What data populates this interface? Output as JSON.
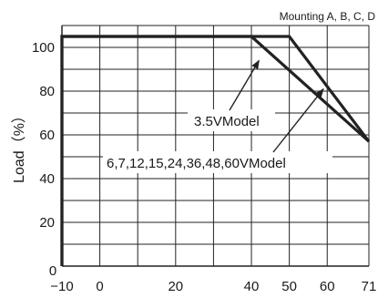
{
  "chart_data": {
    "type": "line",
    "subtitle": "Mounting A, B, C, D",
    "xlabel": "",
    "ylabel": "Load（%）",
    "xlim": [
      -10,
      71
    ],
    "ylim": [
      0,
      110
    ],
    "x_ticks": [
      -10,
      0,
      20,
      40,
      50,
      60,
      71
    ],
    "x_tick_labels": [
      "−10",
      "0",
      "20",
      "40",
      "50",
      "60",
      "71"
    ],
    "y_ticks": [
      0,
      20,
      40,
      60,
      80,
      100
    ],
    "y_tick_labels": [
      "0",
      "20",
      "40",
      "60",
      "80",
      "100"
    ],
    "x_grid": [
      -10,
      0,
      10,
      20,
      30,
      40,
      50,
      60,
      71
    ],
    "y_grid": [
      10,
      20,
      30,
      40,
      50,
      60,
      70,
      80,
      90,
      100,
      110
    ],
    "grid": true,
    "series": [
      {
        "name": "3.5VModel",
        "points": [
          [
            -10,
            0
          ],
          [
            -10,
            105
          ],
          [
            40,
            105
          ],
          [
            71,
            57
          ]
        ]
      },
      {
        "name": "6,7,12,15,24,36,48,60VModel",
        "points": [
          [
            -10,
            0
          ],
          [
            -10,
            105
          ],
          [
            50,
            105
          ],
          [
            71,
            57
          ]
        ]
      }
    ],
    "annotations": [
      {
        "text": "3.5VModel",
        "target": [
          42,
          94
        ]
      },
      {
        "text": "6,7,12,15,24,36,48,60VModel",
        "target": [
          59,
          81
        ]
      }
    ],
    "line_color": "#222222",
    "grid_color": "#222222"
  }
}
